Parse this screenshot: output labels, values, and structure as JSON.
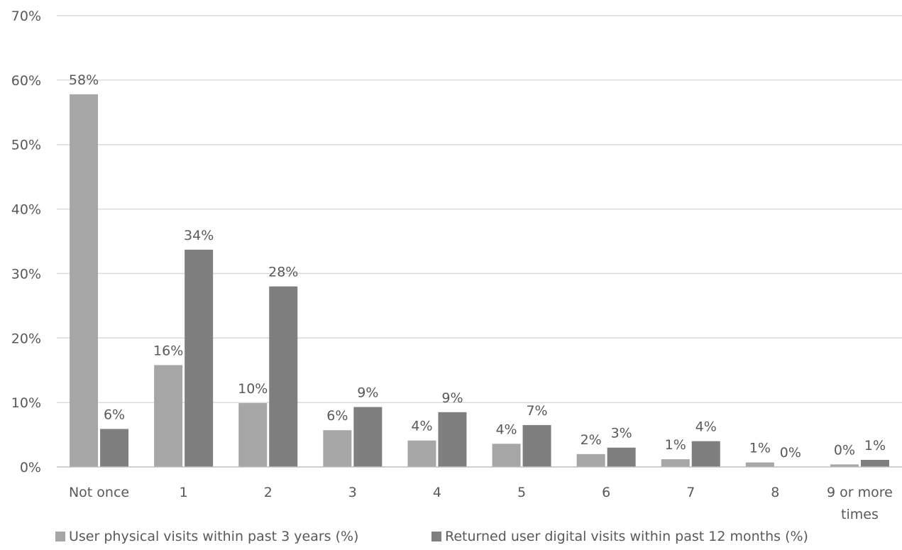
{
  "chart_data": {
    "type": "bar",
    "title": "",
    "xlabel": "",
    "ylabel": "",
    "categories": [
      "Not once",
      "1",
      "2",
      "3",
      "4",
      "5",
      "6",
      "7",
      "8",
      "9 or more times"
    ],
    "series": [
      {
        "name": "User physical visits within past 3 years (%)",
        "color": "#a6a6a6",
        "values": [
          57.8,
          15.8,
          9.9,
          5.7,
          4.1,
          3.6,
          2.0,
          1.2,
          0.7,
          0.4
        ],
        "labels": [
          "58%",
          "16%",
          "10%",
          "6%",
          "4%",
          "4%",
          "2%",
          "1%",
          "1%",
          "0%"
        ]
      },
      {
        "name": "Returned user digital visits within past 12 months (%)",
        "color": "#7f7f7f",
        "values": [
          5.9,
          33.7,
          28.0,
          9.3,
          8.5,
          6.5,
          3.0,
          4.0,
          0.0,
          1.1
        ],
        "labels": [
          "6%",
          "34%",
          "28%",
          "9%",
          "9%",
          "7%",
          "3%",
          "4%",
          "0%",
          "1%"
        ]
      }
    ],
    "ylim": [
      0,
      70
    ],
    "yticks": [
      0,
      10,
      20,
      30,
      40,
      50,
      60,
      70
    ],
    "ytick_labels": [
      "0%",
      "10%",
      "20%",
      "30%",
      "40%",
      "50%",
      "60%",
      "70%"
    ],
    "grid": true,
    "legend": "bottom"
  }
}
